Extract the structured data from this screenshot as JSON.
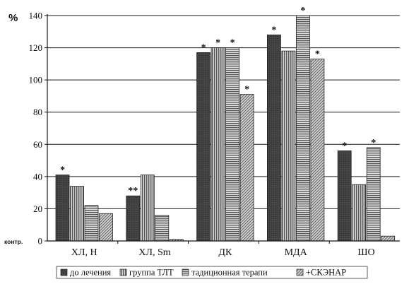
{
  "chart_data": {
    "type": "bar",
    "ylabel": "%",
    "baseline_label": "контр.",
    "ylim": [
      0,
      140
    ],
    "yticks": [
      0,
      20,
      40,
      60,
      80,
      100,
      120,
      140
    ],
    "grid": true,
    "legend_position": "bottom",
    "categories": [
      "ХЛ, Н",
      "ХЛ, Sm",
      "ДК",
      "МДА",
      "ШО"
    ],
    "series": [
      {
        "name": "до лечения",
        "pattern": "dark",
        "values": [
          41,
          28,
          117,
          128,
          56
        ],
        "markers": [
          "*",
          "**",
          "*",
          "*",
          "*"
        ]
      },
      {
        "name": "группа ТЛТ",
        "pattern": "vertical",
        "values": [
          34,
          41,
          120,
          118,
          35
        ],
        "markers": [
          "",
          "",
          "*",
          "",
          ""
        ]
      },
      {
        "name": "тадиционная терапи",
        "pattern": "horizontal",
        "values": [
          22,
          16,
          120,
          140,
          58
        ],
        "markers": [
          "",
          "",
          "*",
          "*",
          "*"
        ]
      },
      {
        "name": "+СКЭНАР",
        "pattern": "diagonal",
        "values": [
          17,
          1,
          91,
          113,
          3
        ],
        "markers": [
          "",
          "",
          "*",
          "*",
          ""
        ]
      }
    ]
  },
  "colors": {
    "dark": "#3a3a3a",
    "vertical": "#8c8c8c",
    "horizontal": "#a8a8a8",
    "diagonal": "#b8b8b8",
    "grid": "#1a1a1a"
  }
}
